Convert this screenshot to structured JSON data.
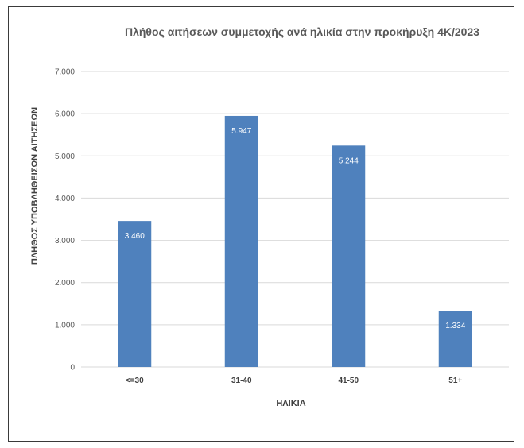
{
  "chart_data": {
    "type": "bar",
    "title": "Πλήθος αιτήσεων συμμετοχής ανά ηλικία στην προκήρυξη 4Κ/2023",
    "xlabel": "ΗΛΙΚΙΑ",
    "ylabel": "ΠΛΗΘΟΣ ΥΠΟΒΛΗΘΕΙΣΩΝ ΑΙΤΗΣΕΩΝ",
    "categories": [
      "<=30",
      "31-40",
      "41-50",
      "51+"
    ],
    "values": [
      3460,
      5947,
      5244,
      1334
    ],
    "data_labels": [
      "3.460",
      "5.947",
      "5.244",
      "1.334"
    ],
    "ylim": [
      0,
      7000
    ],
    "yticks": [
      0,
      1000,
      2000,
      3000,
      4000,
      5000,
      6000,
      7000
    ],
    "ytick_labels": [
      "0",
      "1.000",
      "2.000",
      "3.000",
      "4.000",
      "5.000",
      "6.000",
      "7.000"
    ],
    "grid": true,
    "bar_color": "#4f81bd",
    "grid_color": "#d9d9d9"
  }
}
